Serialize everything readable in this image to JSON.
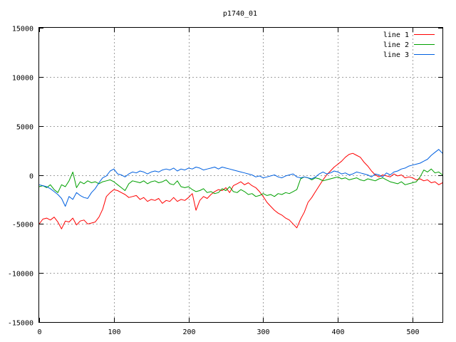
{
  "chart_data": {
    "type": "line",
    "title": "p1740_01",
    "xlabel": "",
    "ylabel": "",
    "xlim": [
      0,
      540
    ],
    "ylim": [
      -15000,
      15000
    ],
    "xticks": [
      0,
      100,
      200,
      300,
      400,
      500
    ],
    "yticks": [
      -15000,
      -10000,
      -5000,
      0,
      5000,
      10000,
      15000
    ],
    "grid": true,
    "legend_position": "top-right",
    "series": [
      {
        "name": "line 1",
        "color": "#ff0000",
        "x": [
          0,
          5,
          10,
          15,
          20,
          25,
          30,
          35,
          40,
          45,
          50,
          55,
          60,
          65,
          70,
          75,
          80,
          85,
          90,
          95,
          100,
          105,
          110,
          115,
          120,
          125,
          130,
          135,
          140,
          145,
          150,
          155,
          160,
          165,
          170,
          175,
          180,
          185,
          190,
          195,
          200,
          205,
          210,
          215,
          220,
          225,
          230,
          235,
          240,
          245,
          250,
          255,
          260,
          265,
          270,
          275,
          280,
          285,
          290,
          295,
          300,
          305,
          310,
          315,
          320,
          325,
          330,
          335,
          340,
          345,
          350,
          355,
          360,
          365,
          370,
          375,
          380,
          385,
          390,
          395,
          400,
          405,
          410,
          415,
          420,
          425,
          430,
          435,
          440,
          445,
          450,
          455,
          460,
          465,
          470,
          475,
          480,
          485,
          490,
          495,
          500,
          505,
          510,
          515,
          520,
          525,
          530,
          535,
          540
        ],
        "values": [
          -5000,
          -4500,
          -4400,
          -4600,
          -4300,
          -4800,
          -5500,
          -4700,
          -4800,
          -4400,
          -5100,
          -4700,
          -4600,
          -5000,
          -4900,
          -4800,
          -4300,
          -3500,
          -2200,
          -1800,
          -1500,
          -1600,
          -1800,
          -2000,
          -2300,
          -2200,
          -2100,
          -2500,
          -2300,
          -2700,
          -2500,
          -2600,
          -2400,
          -2900,
          -2600,
          -2700,
          -2300,
          -2700,
          -2500,
          -2600,
          -2300,
          -1900,
          -3600,
          -2600,
          -2200,
          -2400,
          -2000,
          -1700,
          -1500,
          -1600,
          -1300,
          -1800,
          -1100,
          -900,
          -700,
          -1000,
          -800,
          -1100,
          -1300,
          -1700,
          -2200,
          -2800,
          -3200,
          -3600,
          -3900,
          -4100,
          -4400,
          -4600,
          -5000,
          -5400,
          -4500,
          -3800,
          -2800,
          -2300,
          -1700,
          -1100,
          -500,
          0,
          400,
          800,
          1100,
          1400,
          1800,
          2100,
          2200,
          2000,
          1800,
          1300,
          900,
          400,
          0,
          -200,
          0,
          -100,
          -200,
          100,
          -100,
          0,
          -300,
          -200,
          -300,
          -500,
          -400,
          -600,
          -500,
          -800,
          -700,
          -1000,
          -800
        ]
      },
      {
        "name": "line 2",
        "color": "#00a000",
        "x": [
          0,
          5,
          10,
          15,
          20,
          25,
          30,
          35,
          40,
          45,
          50,
          55,
          60,
          65,
          70,
          75,
          80,
          85,
          90,
          95,
          100,
          105,
          110,
          115,
          120,
          125,
          130,
          135,
          140,
          145,
          150,
          155,
          160,
          165,
          170,
          175,
          180,
          185,
          190,
          195,
          200,
          205,
          210,
          215,
          220,
          225,
          230,
          235,
          240,
          245,
          250,
          255,
          260,
          265,
          270,
          275,
          280,
          285,
          290,
          295,
          300,
          305,
          310,
          315,
          320,
          325,
          330,
          335,
          340,
          345,
          350,
          355,
          360,
          365,
          370,
          375,
          380,
          385,
          390,
          395,
          400,
          405,
          410,
          415,
          420,
          425,
          430,
          435,
          440,
          445,
          450,
          455,
          460,
          465,
          470,
          475,
          480,
          485,
          490,
          495,
          500,
          505,
          510,
          515,
          520,
          525,
          530,
          535,
          540
        ],
        "values": [
          -1200,
          -1100,
          -1300,
          -1000,
          -1500,
          -1800,
          -1000,
          -1200,
          -600,
          300,
          -1300,
          -700,
          -900,
          -600,
          -800,
          -700,
          -900,
          -700,
          -600,
          -500,
          -700,
          -1000,
          -1300,
          -1600,
          -900,
          -600,
          -700,
          -800,
          -600,
          -900,
          -700,
          -600,
          -800,
          -700,
          -500,
          -900,
          -1000,
          -600,
          -1200,
          -1300,
          -1200,
          -1500,
          -1700,
          -1600,
          -1400,
          -1800,
          -1700,
          -1900,
          -1800,
          -1400,
          -1600,
          -1200,
          -1700,
          -1800,
          -1500,
          -1700,
          -2000,
          -1900,
          -2200,
          -2100,
          -1900,
          -2100,
          -2000,
          -2200,
          -1900,
          -2000,
          -1800,
          -1900,
          -1700,
          -1500,
          -400,
          -200,
          -300,
          -500,
          -300,
          -400,
          -600,
          -500,
          -400,
          -300,
          -200,
          -400,
          -300,
          -500,
          -400,
          -300,
          -500,
          -600,
          -400,
          -500,
          -600,
          -400,
          -300,
          -500,
          -700,
          -800,
          -900,
          -700,
          -1000,
          -900,
          -800,
          -700,
          -200,
          500,
          300,
          600,
          200,
          300,
          0
        ]
      },
      {
        "name": "line 3",
        "color": "#0060e0",
        "x": [
          0,
          5,
          10,
          15,
          20,
          25,
          30,
          35,
          40,
          45,
          50,
          55,
          60,
          65,
          70,
          75,
          80,
          85,
          90,
          95,
          100,
          105,
          110,
          115,
          120,
          125,
          130,
          135,
          140,
          145,
          150,
          155,
          160,
          165,
          170,
          175,
          180,
          185,
          190,
          195,
          200,
          205,
          210,
          215,
          220,
          225,
          230,
          235,
          240,
          245,
          250,
          255,
          260,
          265,
          270,
          275,
          280,
          285,
          290,
          295,
          300,
          305,
          310,
          315,
          320,
          325,
          330,
          335,
          340,
          345,
          350,
          355,
          360,
          365,
          370,
          375,
          380,
          385,
          390,
          395,
          400,
          405,
          410,
          415,
          420,
          425,
          430,
          435,
          440,
          445,
          450,
          455,
          460,
          465,
          470,
          475,
          480,
          485,
          490,
          495,
          500,
          505,
          510,
          515,
          520,
          525,
          530,
          535,
          540
        ],
        "values": [
          -1000,
          -1100,
          -1200,
          -1400,
          -1700,
          -2000,
          -2400,
          -3200,
          -2200,
          -2500,
          -1800,
          -2100,
          -2300,
          -2400,
          -1800,
          -1400,
          -800,
          -300,
          -100,
          400,
          600,
          100,
          0,
          -200,
          100,
          300,
          200,
          400,
          300,
          100,
          300,
          400,
          300,
          500,
          600,
          500,
          700,
          400,
          600,
          500,
          700,
          600,
          800,
          700,
          500,
          600,
          700,
          800,
          600,
          800,
          700,
          600,
          500,
          400,
          300,
          200,
          100,
          0,
          -200,
          -100,
          -300,
          -200,
          -100,
          0,
          -200,
          -300,
          -100,
          0,
          100,
          -200,
          -300,
          -200,
          -300,
          -400,
          -200,
          100,
          300,
          100,
          200,
          400,
          300,
          100,
          200,
          0,
          100,
          300,
          200,
          100,
          0,
          -200,
          100,
          0,
          -200,
          200,
          0,
          300,
          400,
          600,
          700,
          900,
          1000,
          1100,
          1200,
          1400,
          1600,
          2000,
          2300,
          2600,
          2200
        ]
      }
    ]
  }
}
